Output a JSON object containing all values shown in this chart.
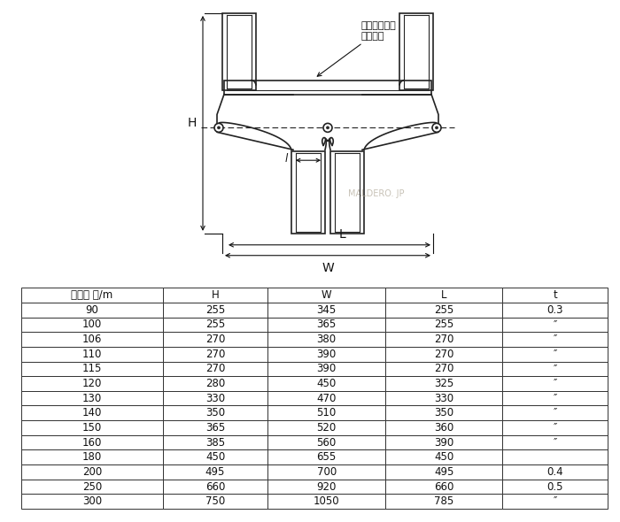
{
  "table_headers": [
    "サイズ ㎜/m",
    "H",
    "W",
    "L",
    "t"
  ],
  "table_rows": [
    [
      "90",
      "255",
      "345",
      "255",
      "0.3"
    ],
    [
      "100",
      "255",
      "365",
      "255",
      "″"
    ],
    [
      "106",
      "270",
      "380",
      "270",
      "″"
    ],
    [
      "110",
      "270",
      "390",
      "270",
      "″"
    ],
    [
      "115",
      "270",
      "390",
      "270",
      "″"
    ],
    [
      "120",
      "280",
      "450",
      "325",
      "″"
    ],
    [
      "130",
      "330",
      "470",
      "330",
      "″"
    ],
    [
      "140",
      "350",
      "510",
      "350",
      "″"
    ],
    [
      "150",
      "365",
      "520",
      "360",
      "″"
    ],
    [
      "160",
      "385",
      "560",
      "390",
      "″"
    ],
    [
      "180",
      "450",
      "655",
      "450",
      ""
    ],
    [
      "200",
      "495",
      "700",
      "495",
      "0.4"
    ],
    [
      "250",
      "660",
      "920",
      "660",
      "0.5"
    ],
    [
      "300",
      "750",
      "1050",
      "785",
      "″"
    ]
  ],
  "annotation_text": "ステンレス製\nリベット",
  "bg_color": "#ffffff",
  "line_color": "#222222",
  "watermark": "MALDERO. JP"
}
